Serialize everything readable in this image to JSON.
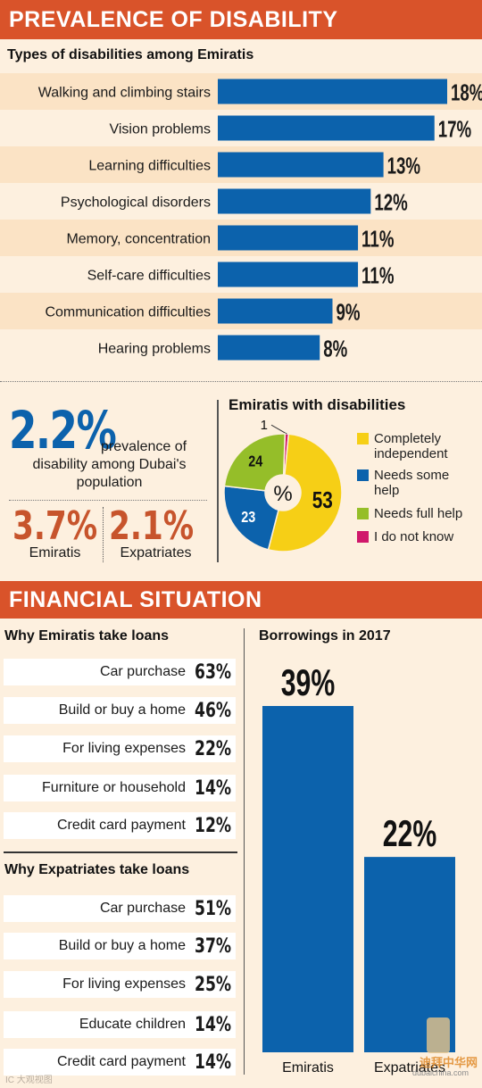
{
  "section1": {
    "title": "PREVALENCE OF DISABILITY",
    "subtitle": "Types of disabilities among Emiratis"
  },
  "chart_data": [
    {
      "type": "bar",
      "orientation": "horizontal",
      "title": "Types of disabilities among Emiratis",
      "categories": [
        "Walking and climbing stairs",
        "Vision problems",
        "Learning difficulties",
        "Psychological disorders",
        "Memory, concentration",
        "Self-care difficulties",
        "Communication difficulties",
        "Hearing problems"
      ],
      "values": [
        18,
        17,
        13,
        12,
        11,
        11,
        9,
        8
      ],
      "value_labels": [
        "18%",
        "17%",
        "13%",
        "12%",
        "11%",
        "11%",
        "9%",
        "8%"
      ],
      "color": "#0c62ac",
      "xlim": [
        0,
        18
      ]
    },
    {
      "type": "pie",
      "title": "Emiratis with disabilities",
      "center_label": "%",
      "labels": [
        "Completely independent",
        "Needs some help",
        "Needs full help",
        "I do not know"
      ],
      "values": [
        53,
        23,
        24,
        1
      ],
      "colors": [
        "#f6cf16",
        "#0c62ac",
        "#95be29",
        "#d0186b"
      ],
      "legend_lines": [
        [
          "Completely",
          "independent"
        ],
        [
          "Needs some",
          "help"
        ],
        [
          "Needs full help"
        ],
        [
          "I do not know"
        ]
      ]
    },
    {
      "type": "bar",
      "title": "Borrowings in 2017",
      "categories": [
        "Emiratis",
        "Expatriates"
      ],
      "values": [
        39,
        22
      ],
      "value_labels": [
        "39%",
        "22%"
      ],
      "color": "#0c62ac",
      "ylim": [
        0,
        39
      ]
    }
  ],
  "prevalence": {
    "big_value": "2.2%",
    "text_line1": "prevalence of",
    "text_line2": "disability among Dubai's",
    "text_line3": "population",
    "emiratis_value": "3.7%",
    "emiratis_label": "Emiratis",
    "expatriates_value": "2.1%",
    "expatriates_label": "Expatriates"
  },
  "section2": {
    "title": "FINANCIAL SITUATION",
    "emirati_loans_title": "Why Emiratis take loans",
    "emirati_loans": [
      {
        "label": "Car purchase",
        "value": "63%"
      },
      {
        "label": "Build or buy a home",
        "value": "46%"
      },
      {
        "label": "For living expenses",
        "value": "22%"
      },
      {
        "label": "Furniture or household",
        "value": "14%"
      },
      {
        "label": "Credit card payment",
        "value": "12%"
      }
    ],
    "expat_loans_title": "Why Expatriates take loans",
    "expat_loans": [
      {
        "label": "Car purchase",
        "value": "51%"
      },
      {
        "label": "Build or buy a home",
        "value": "37%"
      },
      {
        "label": "For living expenses",
        "value": "25%"
      },
      {
        "label": "Educate children",
        "value": "14%"
      },
      {
        "label": "Credit card payment",
        "value": "14%"
      }
    ]
  },
  "watermark": {
    "left_text": "IC 大观视图",
    "right_text": "迪拜中华网",
    "right_url": "dubaichina.com"
  }
}
